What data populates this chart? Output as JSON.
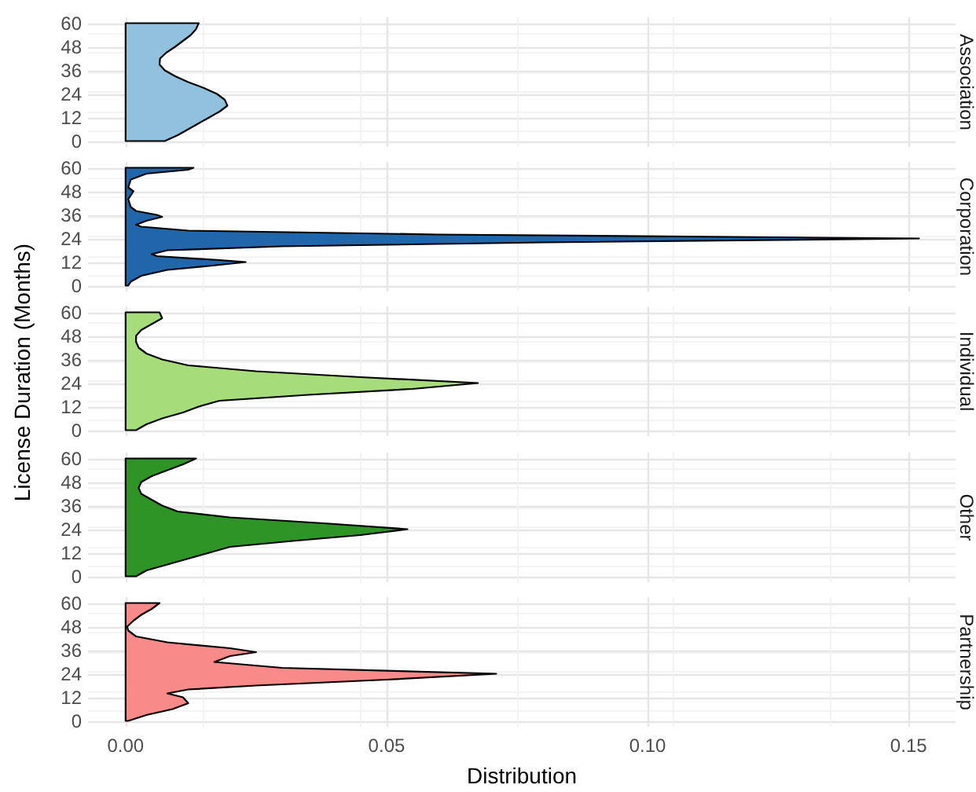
{
  "chart_data": [
    {
      "type": "area",
      "orientation": "horizontal",
      "title": "Association",
      "color": "#92c1dd",
      "grid": true,
      "tick_labels": "y",
      "xlim": [
        -0.0072,
        0.159
      ],
      "xticks": [
        0,
        0.05,
        0.1,
        0.15
      ],
      "ylim": [
        -3,
        63
      ],
      "yticks": [
        0,
        12,
        24,
        36,
        48,
        60
      ],
      "x": [
        0,
        3,
        6,
        9,
        12,
        15,
        18,
        21,
        24,
        27,
        30,
        33,
        36,
        39,
        42,
        45,
        48,
        51,
        54,
        57,
        60
      ],
      "values": [
        0.0075,
        0.01,
        0.012,
        0.014,
        0.016,
        0.018,
        0.0195,
        0.019,
        0.0175,
        0.015,
        0.012,
        0.0095,
        0.0075,
        0.0065,
        0.0066,
        0.0078,
        0.0095,
        0.011,
        0.0125,
        0.0135,
        0.014
      ]
    },
    {
      "type": "area",
      "orientation": "horizontal",
      "title": "Corporation",
      "color": "#2066aa",
      "grid": true,
      "tick_labels": "y",
      "xlim": [
        -0.0072,
        0.159
      ],
      "xticks": [
        0,
        0.05,
        0.1,
        0.15
      ],
      "ylim": [
        -3,
        63
      ],
      "yticks": [
        0,
        12,
        24,
        36,
        48,
        60
      ],
      "x": [
        0,
        2,
        5,
        8,
        10,
        12,
        13,
        15,
        16,
        18,
        20,
        22,
        24,
        26,
        28,
        30,
        31,
        33,
        35,
        36,
        38,
        40,
        44,
        46,
        48,
        50,
        54,
        57,
        59,
        60
      ],
      "values": [
        0.0005,
        0.001,
        0.003,
        0.008,
        0.016,
        0.023,
        0.018,
        0.006,
        0.005,
        0.008,
        0.03,
        0.08,
        0.152,
        0.06,
        0.012,
        0.003,
        0.002,
        0.004,
        0.007,
        0.006,
        0.002,
        0.001,
        0.0005,
        0.001,
        0.0015,
        0.0005,
        0.001,
        0.004,
        0.012,
        0.013
      ]
    },
    {
      "type": "area",
      "orientation": "horizontal",
      "title": "Individual",
      "ylabel": "License Duration (Months)",
      "color": "#a6dc7a",
      "grid": true,
      "tick_labels": "y",
      "xlim": [
        -0.0072,
        0.159
      ],
      "xticks": [
        0,
        0.05,
        0.1,
        0.15
      ],
      "ylim": [
        -3,
        63
      ],
      "yticks": [
        0,
        12,
        24,
        36,
        48,
        60
      ],
      "x": [
        0,
        3,
        6,
        9,
        12,
        15,
        18,
        21,
        24,
        27,
        30,
        33,
        36,
        39,
        42,
        45,
        48,
        51,
        54,
        57,
        60
      ],
      "values": [
        0.002,
        0.004,
        0.007,
        0.011,
        0.014,
        0.018,
        0.035,
        0.055,
        0.0675,
        0.045,
        0.025,
        0.012,
        0.007,
        0.004,
        0.0025,
        0.002,
        0.002,
        0.003,
        0.005,
        0.007,
        0.0065
      ]
    },
    {
      "type": "area",
      "orientation": "horizontal",
      "title": "Other",
      "color": "#2d9425",
      "grid": true,
      "tick_labels": "y",
      "xlim": [
        -0.0072,
        0.159
      ],
      "xticks": [
        0,
        0.05,
        0.1,
        0.15
      ],
      "ylim": [
        -3,
        63
      ],
      "yticks": [
        0,
        12,
        24,
        36,
        48,
        60
      ],
      "x": [
        0,
        3,
        6,
        9,
        12,
        15,
        18,
        21,
        24,
        27,
        30,
        33,
        36,
        39,
        42,
        45,
        48,
        51,
        54,
        57,
        60
      ],
      "values": [
        0.002,
        0.004,
        0.008,
        0.012,
        0.016,
        0.02,
        0.032,
        0.045,
        0.054,
        0.038,
        0.02,
        0.01,
        0.007,
        0.005,
        0.003,
        0.0025,
        0.003,
        0.005,
        0.008,
        0.011,
        0.0135
      ]
    },
    {
      "type": "area",
      "orientation": "horizontal",
      "title": "Partnership",
      "xlabel": "Distribution",
      "color": "#f98a8a",
      "grid": true,
      "xlim": [
        -0.0072,
        0.159
      ],
      "xticks": [
        {
          "value": 0,
          "label": "0.00"
        },
        0.05,
        {
          "value": 0.1,
          "label": "0.10"
        },
        0.15
      ],
      "ylim": [
        -3,
        63
      ],
      "yticks": [
        0,
        12,
        24,
        36,
        48,
        60
      ],
      "x": [
        0,
        3,
        6,
        9,
        12,
        14,
        16,
        18,
        21,
        24,
        27,
        30,
        33,
        35,
        37,
        40,
        43,
        46,
        48,
        51,
        54,
        57,
        60
      ],
      "values": [
        0.0005,
        0.004,
        0.009,
        0.012,
        0.011,
        0.008,
        0.012,
        0.025,
        0.05,
        0.071,
        0.03,
        0.017,
        0.02,
        0.025,
        0.02,
        0.008,
        0.002,
        0.0005,
        0.0003,
        0.0015,
        0.003,
        0.005,
        0.0065
      ]
    }
  ]
}
